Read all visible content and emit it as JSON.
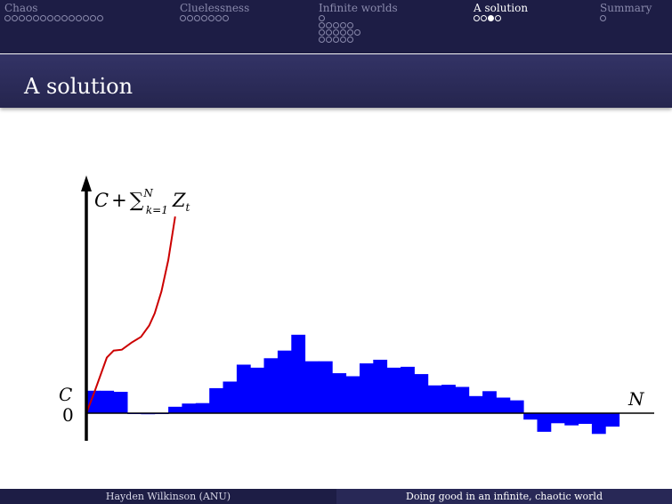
{
  "nav": {
    "sections": [
      {
        "label": "Chaos",
        "active": false,
        "rows": [
          {
            "count": 14,
            "current": -1
          }
        ]
      },
      {
        "label": "Cluelessness",
        "active": false,
        "rows": [
          {
            "count": 7,
            "current": -1
          }
        ]
      },
      {
        "label": "Infinite worlds",
        "active": false,
        "rows": [
          {
            "count": 1,
            "current": -1
          },
          {
            "count": 5,
            "current": -1
          },
          {
            "count": 6,
            "current": -1
          },
          {
            "count": 5,
            "current": -1
          }
        ]
      },
      {
        "label": "A solution",
        "active": true,
        "rows": [
          {
            "count": 4,
            "current": 2
          }
        ]
      },
      {
        "label": "Summary",
        "active": false,
        "rows": [
          {
            "count": 1,
            "current": -1
          }
        ]
      }
    ]
  },
  "frame": {
    "title": "A solution"
  },
  "footer": {
    "left": "Hayden Wilkinson (ANU)",
    "right": "Doing good in an infinite, chaotic world"
  },
  "chart_data": {
    "type": "bar",
    "y_axis_label": {
      "base": "C + ∑",
      "sup": "N",
      "sub": "k=1",
      "term": "Z",
      "term_sub": "t"
    },
    "x_axis_label": "N",
    "y_ticks": [
      "C",
      "0"
    ],
    "C_value": 1,
    "bar_values": [
      1.05,
      1.05,
      1.0,
      -0.04,
      -0.05,
      -0.04,
      0.3,
      0.45,
      0.47,
      1.17,
      1.48,
      2.27,
      2.13,
      2.57,
      2.93,
      3.67,
      2.43,
      2.43,
      1.87,
      1.73,
      2.33,
      2.5,
      2.13,
      2.17,
      1.83,
      1.3,
      1.33,
      1.23,
      0.8,
      1.03,
      0.73,
      0.6,
      -0.3,
      -0.87,
      -0.47,
      -0.57,
      -0.5,
      -0.97,
      -0.63
    ],
    "red_line": [
      [
        0,
        0
      ],
      [
        0.6,
        1.0
      ],
      [
        1.5,
        2.6
      ],
      [
        2.0,
        2.93
      ],
      [
        2.6,
        2.97
      ],
      [
        3.3,
        3.3
      ],
      [
        4.0,
        3.57
      ],
      [
        4.6,
        4.1
      ],
      [
        5.0,
        4.67
      ],
      [
        5.5,
        5.7
      ],
      [
        6.0,
        7.17
      ],
      [
        6.5,
        9.2
      ]
    ],
    "colors": {
      "bars": "#0000ff",
      "line": "#cc0000",
      "axis": "#000000"
    }
  }
}
